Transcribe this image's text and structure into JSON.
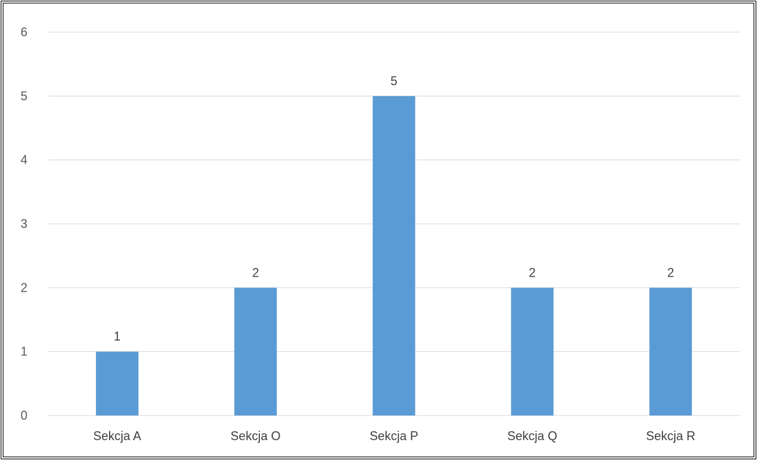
{
  "chart_data": {
    "type": "bar",
    "title": "",
    "xlabel": "",
    "ylabel": "",
    "categories": [
      "Sekcja A",
      "Sekcja O",
      "Sekcja P",
      "Sekcja Q",
      "Sekcja R"
    ],
    "values": [
      1,
      2,
      5,
      2,
      2
    ],
    "data_labels": [
      "1",
      "2",
      "5",
      "2",
      "2"
    ],
    "ylim": [
      0,
      6
    ],
    "yticks": [
      "0",
      "1",
      "2",
      "3",
      "4",
      "5",
      "6"
    ],
    "grid": true,
    "legend": "none",
    "colors": {
      "bar": "#5b9bd5",
      "grid": "#d9d9d9",
      "border": "#000000"
    }
  }
}
